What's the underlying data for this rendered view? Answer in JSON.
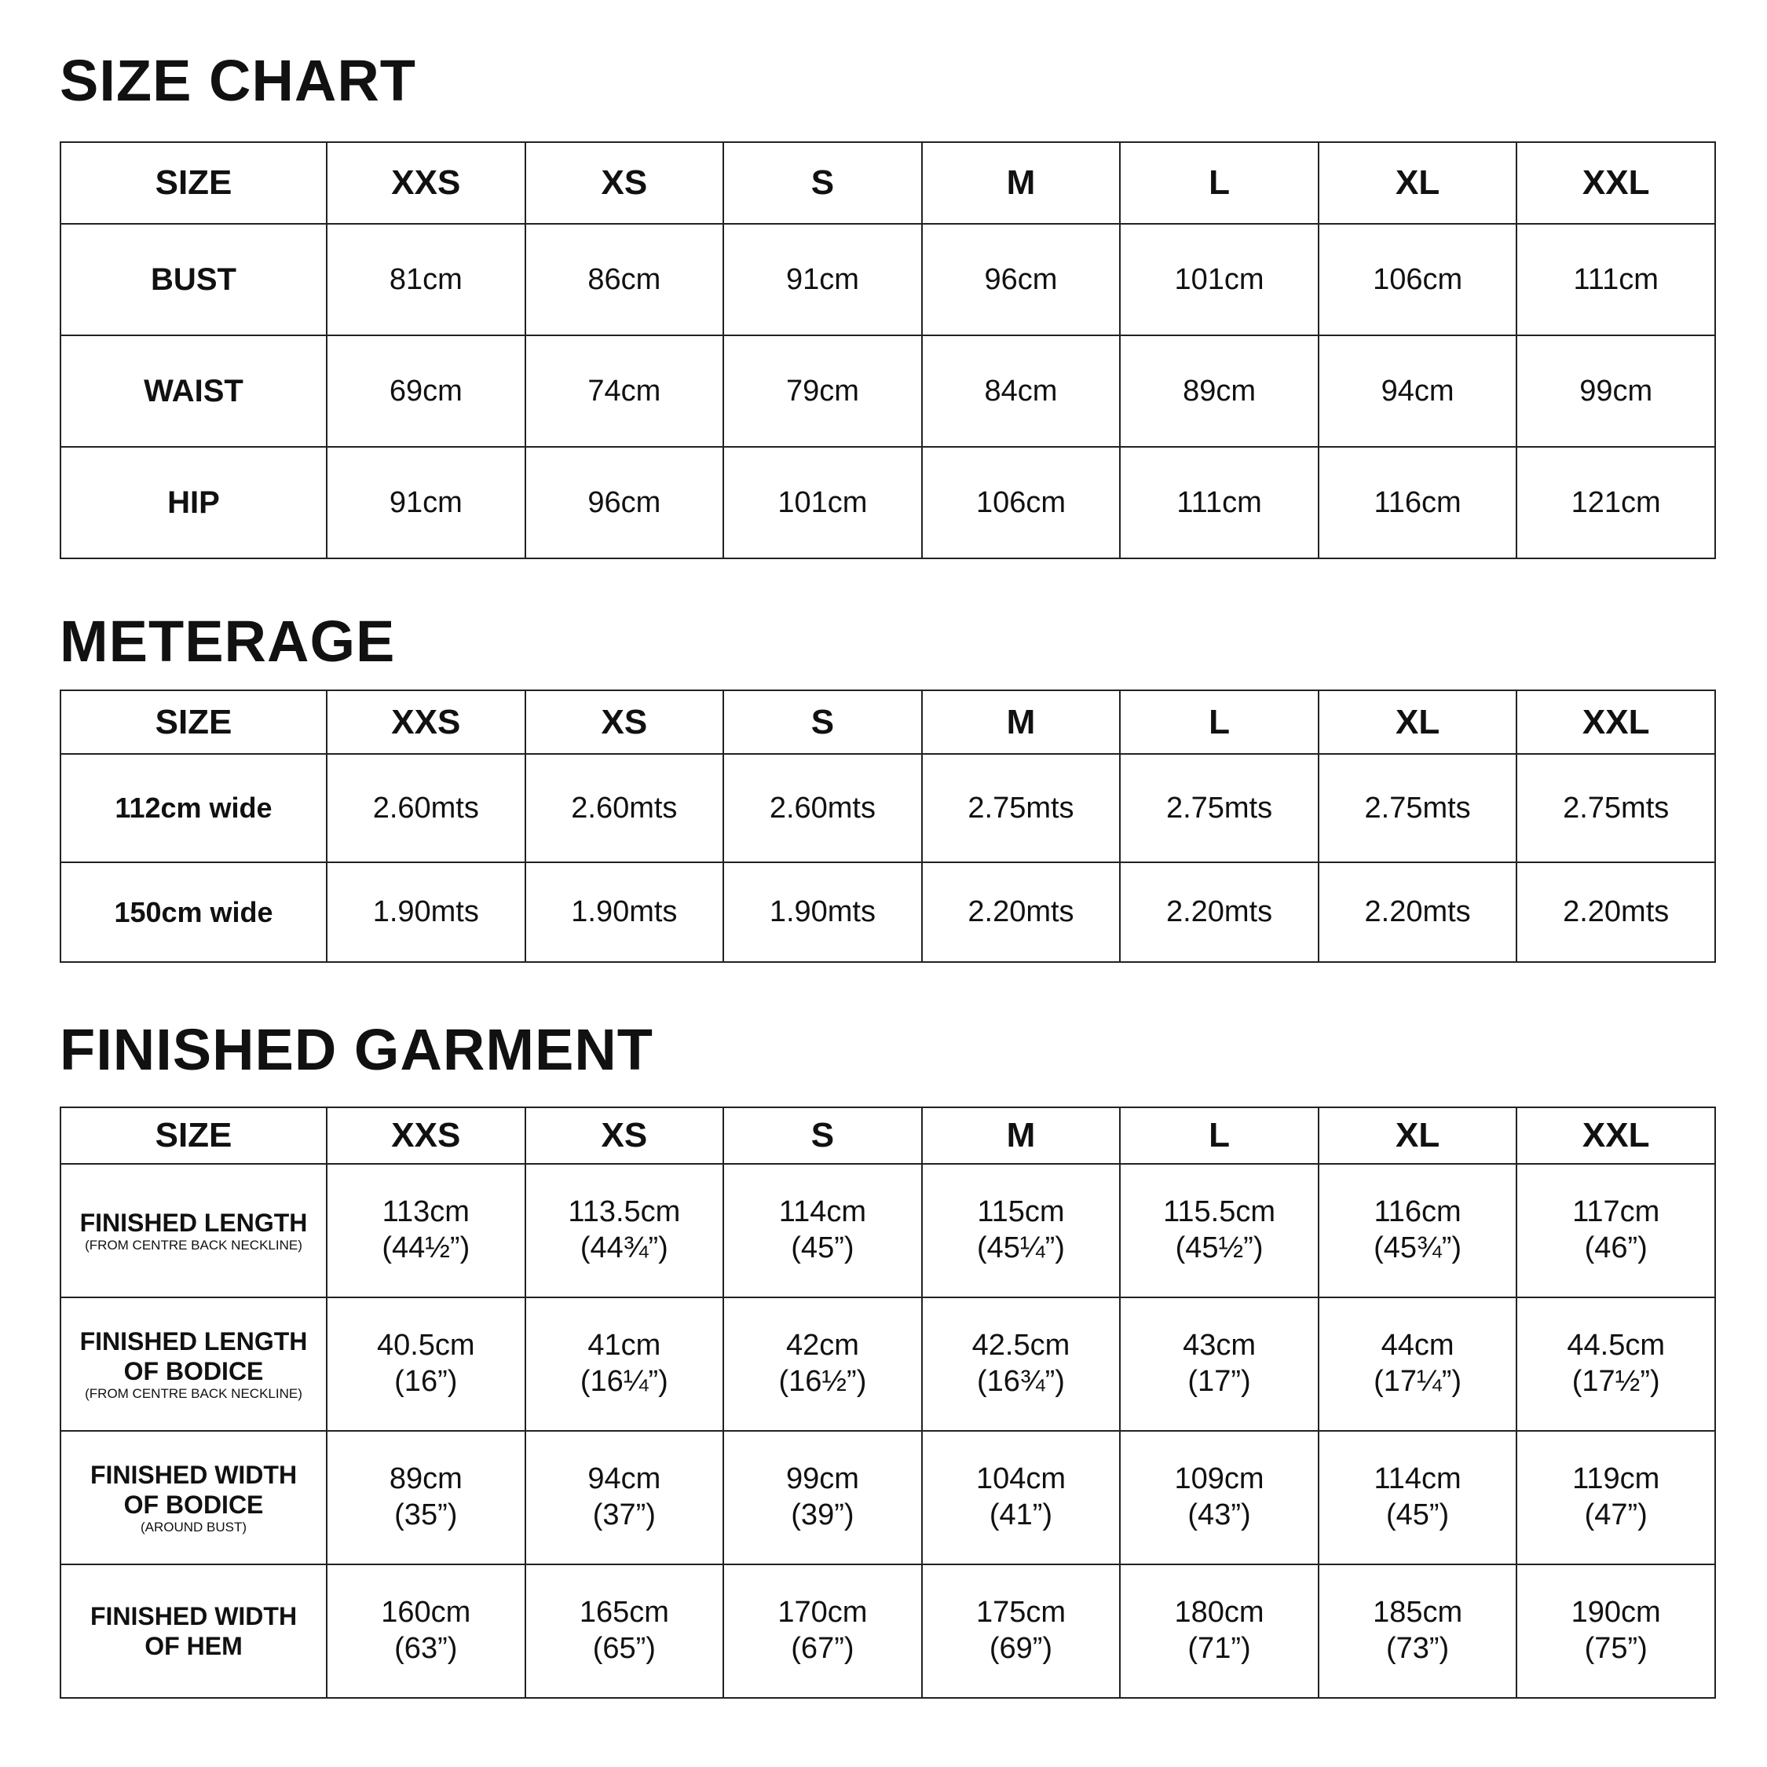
{
  "sizes": [
    "SIZE",
    "XXS",
    "XS",
    "S",
    "M",
    "L",
    "XL",
    "XXL"
  ],
  "size_chart": {
    "title": "SIZE CHART",
    "rows": [
      {
        "label": "BUST",
        "values": [
          "81cm",
          "86cm",
          "91cm",
          "96cm",
          "101cm",
          "106cm",
          "111cm"
        ]
      },
      {
        "label": "WAIST",
        "values": [
          "69cm",
          "74cm",
          "79cm",
          "84cm",
          "89cm",
          "94cm",
          "99cm"
        ]
      },
      {
        "label": "HIP",
        "values": [
          "91cm",
          "96cm",
          "101cm",
          "106cm",
          "111cm",
          "116cm",
          "121cm"
        ]
      }
    ]
  },
  "meterage": {
    "title": "METERAGE",
    "rows": [
      {
        "label": "112cm wide",
        "values": [
          "2.60mts",
          "2.60mts",
          "2.60mts",
          "2.75mts",
          "2.75mts",
          "2.75mts",
          "2.75mts"
        ]
      },
      {
        "label": "150cm wide",
        "values": [
          "1.90mts",
          "1.90mts",
          "1.90mts",
          "2.20mts",
          "2.20mts",
          "2.20mts",
          "2.20mts"
        ]
      }
    ]
  },
  "finished_garment": {
    "title": "FINISHED GARMENT",
    "rows": [
      {
        "label": [
          "FINISHED LENGTH"
        ],
        "note": "(FROM CENTRE BACK NECKLINE)",
        "values": [
          [
            "113cm",
            "(44½”)"
          ],
          [
            "113.5cm",
            "(44¾”)"
          ],
          [
            "114cm",
            "(45”)"
          ],
          [
            "115cm",
            "(45¼”)"
          ],
          [
            "115.5cm",
            "(45½”)"
          ],
          [
            "116cm",
            "(45¾”)"
          ],
          [
            "117cm",
            "(46”)"
          ]
        ]
      },
      {
        "label": [
          "FINISHED LENGTH",
          "OF BODICE"
        ],
        "note": "(FROM CENTRE BACK NECKLINE)",
        "values": [
          [
            "40.5cm",
            "(16”)"
          ],
          [
            "41cm",
            "(16¼”)"
          ],
          [
            "42cm",
            "(16½”)"
          ],
          [
            "42.5cm",
            "(16¾”)"
          ],
          [
            "43cm",
            "(17”)"
          ],
          [
            "44cm",
            "(17¼”)"
          ],
          [
            "44.5cm",
            "(17½”)"
          ]
        ]
      },
      {
        "label": [
          "FINISHED WIDTH",
          "OF BODICE"
        ],
        "note": "(AROUND BUST)",
        "values": [
          [
            "89cm",
            "(35”)"
          ],
          [
            "94cm",
            "(37”)"
          ],
          [
            "99cm",
            "(39”)"
          ],
          [
            "104cm",
            "(41”)"
          ],
          [
            "109cm",
            "(43”)"
          ],
          [
            "114cm",
            "(45”)"
          ],
          [
            "119cm",
            "(47”)"
          ]
        ]
      },
      {
        "label": [
          "FINISHED WIDTH",
          "OF HEM"
        ],
        "note": "",
        "values": [
          [
            "160cm",
            "(63”)"
          ],
          [
            "165cm",
            "(65”)"
          ],
          [
            "170cm",
            "(67”)"
          ],
          [
            "175cm",
            "(69”)"
          ],
          [
            "180cm",
            "(71”)"
          ],
          [
            "185cm",
            "(73”)"
          ],
          [
            "190cm",
            "(75”)"
          ]
        ]
      }
    ]
  }
}
